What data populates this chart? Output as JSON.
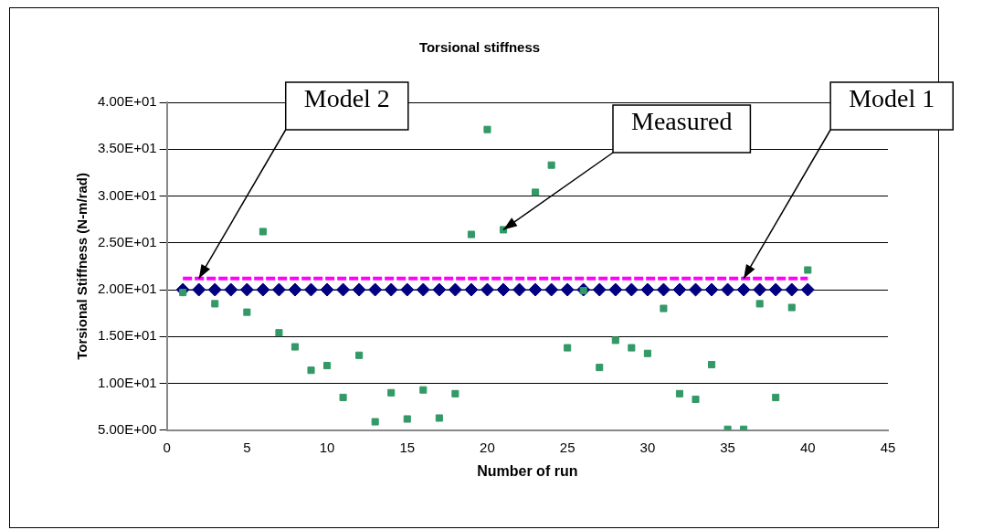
{
  "chart_data": {
    "type": "scatter",
    "title": "Torsional stiffness",
    "xlabel": "Number of run",
    "ylabel": "Torsional Stiffness (N-m/rad)",
    "x": [
      1,
      2,
      3,
      4,
      5,
      6,
      7,
      8,
      9,
      10,
      11,
      12,
      13,
      14,
      15,
      16,
      17,
      18,
      19,
      20,
      21,
      22,
      23,
      24,
      25,
      26,
      27,
      28,
      29,
      30,
      31,
      32,
      33,
      34,
      35,
      36,
      37,
      38,
      39,
      40
    ],
    "series": [
      {
        "type": "line",
        "color": "#ff00ff",
        "line_style": "dashed",
        "marker": "none",
        "values": [
          21.2,
          21.2,
          21.2,
          21.2,
          21.2,
          21.2,
          21.2,
          21.2,
          21.2,
          21.2,
          21.2,
          21.2,
          21.2,
          21.2,
          21.2,
          21.2,
          21.2,
          21.2,
          21.2,
          21.2,
          21.2,
          21.2,
          21.2,
          21.2,
          21.2,
          21.2,
          21.2,
          21.2,
          21.2,
          21.2,
          21.2,
          21.2,
          21.2,
          21.2,
          21.2,
          21.2,
          21.2,
          21.2,
          21.2,
          21.2
        ]
      },
      {
        "type": "line",
        "color": "#000080",
        "line_style": "solid",
        "marker": "diamond",
        "values": [
          20,
          20,
          20,
          20,
          20,
          20,
          20,
          20,
          20,
          20,
          20,
          20,
          20,
          20,
          20,
          20,
          20,
          20,
          20,
          20,
          20,
          20,
          20,
          20,
          20,
          20,
          20,
          20,
          20,
          20,
          20,
          20,
          20,
          20,
          20,
          20,
          20,
          20,
          20,
          20
        ]
      },
      {
        "color": "#339966",
        "marker": "square",
        "values": [
          19.7,
          null,
          18.5,
          null,
          17.6,
          26.2,
          15.4,
          13.9,
          11.4,
          11.9,
          8.5,
          13.0,
          5.9,
          9.0,
          6.2,
          9.3,
          6.3,
          8.9,
          25.9,
          37.1,
          26.4,
          null,
          30.4,
          33.3,
          13.8,
          19.9,
          11.7,
          14.6,
          13.8,
          13.2,
          18.0,
          8.9,
          8.3,
          12.0,
          5.1,
          5.1,
          18.5,
          8.5,
          18.1,
          22.1
        ]
      }
    ],
    "xlim": [
      0,
      45
    ],
    "xticks": [
      0,
      5,
      10,
      15,
      20,
      25,
      30,
      35,
      40,
      45
    ],
    "ylim": [
      5,
      40
    ],
    "yticks": [
      {
        "value": 5,
        "label": "5.00E+00"
      },
      {
        "value": 10,
        "label": "1.00E+01"
      },
      {
        "value": 15,
        "label": "1.50E+01"
      },
      {
        "value": 20,
        "label": "2.00E+01"
      },
      {
        "value": 25,
        "label": "2.50E+01"
      },
      {
        "value": 30,
        "label": "3.00E+01"
      },
      {
        "value": 35,
        "label": "3.50E+01"
      },
      {
        "value": 40,
        "label": "4.00E+01"
      }
    ],
    "grid": "y",
    "legend": false,
    "annotations": [
      {
        "text": "Model 2",
        "x": 2,
        "y": 21.2
      },
      {
        "text": "Measured",
        "x": 21,
        "y": 26.4
      },
      {
        "text": "Model 1",
        "x": 36,
        "y": 21.2
      }
    ]
  }
}
